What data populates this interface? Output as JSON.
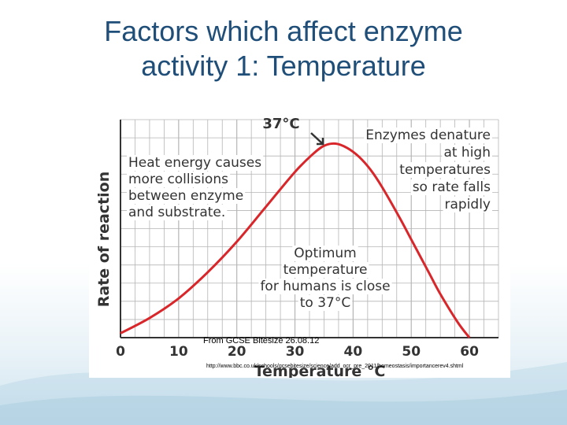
{
  "slide": {
    "title_line1": "Factors which affect enzyme",
    "title_line2": "activity 1: Temperature",
    "source": "From GCSE Bitesize 26.08.12",
    "url": "http://www.bbc.co.uk/schools/gcsebitesize/science/add_ocr_pre_2011/homeostasis/importancerev4.shtml"
  },
  "colors": {
    "title": "#1f4e79",
    "curve": "#d9262a",
    "grid": "#b5b5b5",
    "text": "#333333"
  },
  "chart_data": {
    "type": "line",
    "xlabel": "Temperature °C",
    "ylabel": "Rate of reaction",
    "xlim": [
      0,
      65
    ],
    "ylim": [
      0,
      100
    ],
    "xticks": [
      "0",
      "10",
      "20",
      "30",
      "40",
      "50",
      "60"
    ],
    "grid": true,
    "series": [
      {
        "x": [
          0,
          5,
          10,
          15,
          20,
          25,
          30,
          33,
          35,
          37,
          39,
          41,
          43,
          45,
          48,
          50,
          53,
          55,
          58,
          60
        ],
        "y": [
          2,
          9,
          18,
          30,
          44,
          60,
          76,
          84,
          88,
          89,
          87,
          83,
          77,
          69,
          55,
          45,
          30,
          20,
          7,
          0
        ]
      }
    ],
    "annotations": {
      "peak_label": "37°C",
      "denature": [
        "Enzymes denature",
        "at high",
        "temperatures",
        "so rate falls",
        "rapidly"
      ],
      "heat": [
        "Heat energy causes",
        "more collisions",
        "between enzyme",
        "and substrate."
      ],
      "optimum": [
        "Optimum",
        "temperature",
        "for humans is close",
        "to 37°C"
      ]
    }
  }
}
